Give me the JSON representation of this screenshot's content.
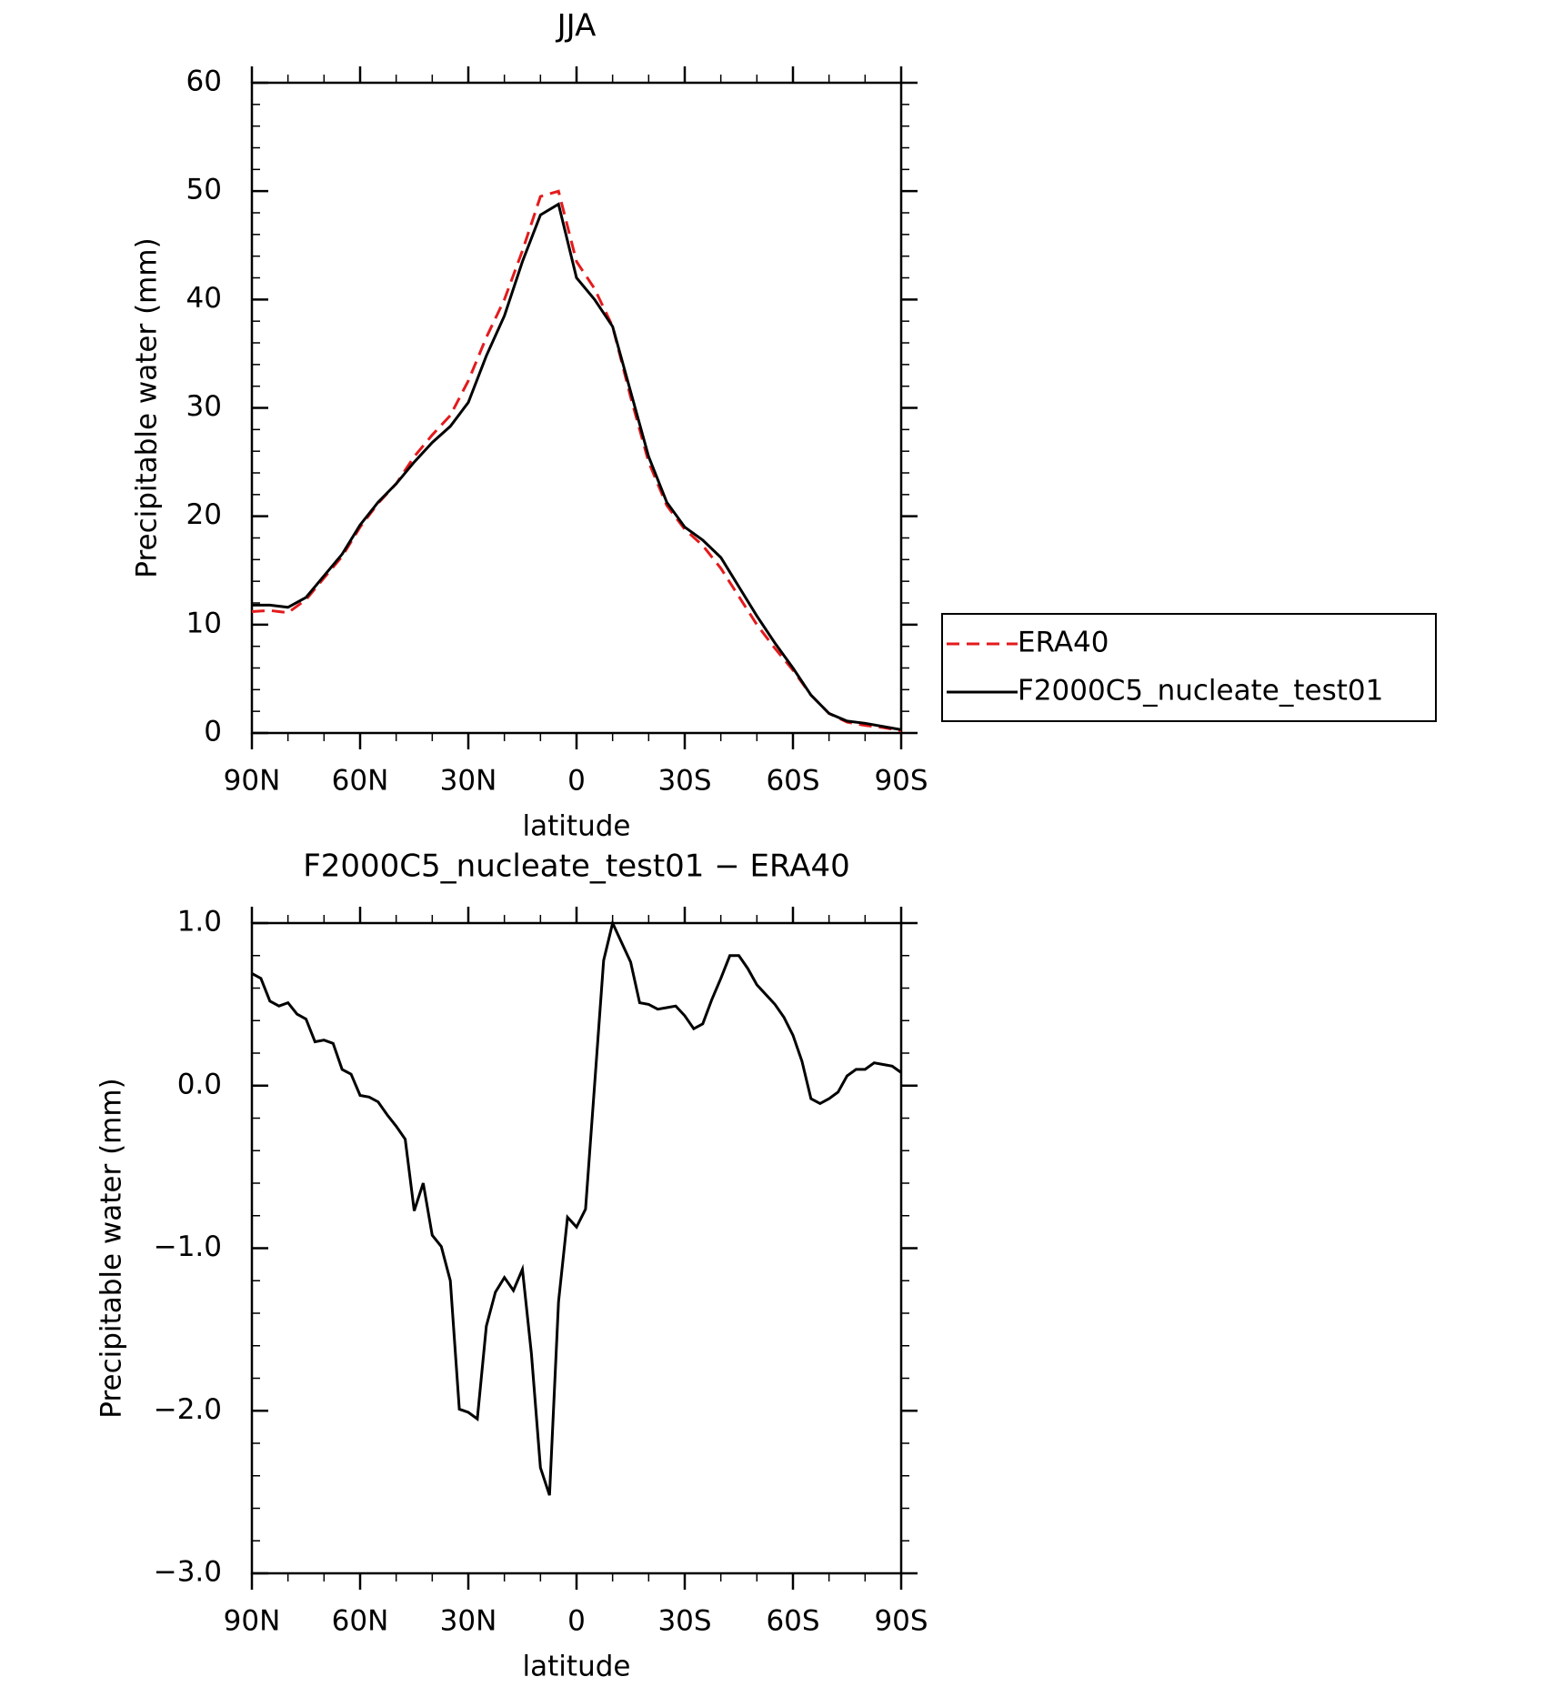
{
  "chart_data": [
    {
      "type": "line",
      "title": "JJA",
      "xlabel": "latitude",
      "ylabel": "Precipitable water (mm)",
      "x": [
        90,
        85,
        80,
        75,
        70,
        65,
        60,
        55,
        50,
        45,
        40,
        35,
        30,
        25,
        20,
        15,
        10,
        5,
        0,
        -5,
        -10,
        -15,
        -20,
        -25,
        -30,
        -35,
        -40,
        -45,
        -50,
        -55,
        -60,
        -65,
        -70,
        -75,
        -80,
        -85,
        -90
      ],
      "series": [
        {
          "name": "ERA40",
          "color": "#e41a1c",
          "line_style": "dashed",
          "values": [
            11.2,
            11.3,
            11.1,
            12.3,
            14.3,
            16.3,
            19.0,
            21.2,
            23.0,
            25.5,
            27.5,
            29.3,
            32.5,
            36.5,
            40.0,
            44.5,
            49.5,
            50.0,
            43.5,
            41.0,
            37.5,
            31.0,
            25.0,
            21.0,
            18.8,
            17.3,
            15.2,
            12.6,
            10.0,
            7.8,
            5.8,
            3.5,
            1.8,
            1.0,
            0.7,
            0.5,
            0.2
          ]
        },
        {
          "name": "F2000C5_nucleate_test01",
          "color": "#000000",
          "line_style": "solid",
          "values": [
            11.8,
            11.8,
            11.6,
            12.5,
            14.5,
            16.5,
            19.2,
            21.3,
            23.0,
            25.0,
            26.8,
            28.3,
            30.5,
            34.8,
            38.5,
            43.5,
            47.8,
            48.8,
            42.0,
            40.0,
            37.5,
            31.5,
            25.5,
            21.3,
            19.0,
            17.8,
            16.2,
            13.5,
            10.8,
            8.3,
            6.0,
            3.5,
            1.8,
            1.1,
            0.9,
            0.6,
            0.3
          ]
        }
      ],
      "xlim": [
        90,
        -90
      ],
      "xticks": [
        {
          "value": 90,
          "label": "90N"
        },
        {
          "value": 60,
          "label": "60N"
        },
        {
          "value": 30,
          "label": "30N"
        },
        0,
        {
          "value": -30,
          "label": "30S"
        },
        {
          "value": -60,
          "label": "60S"
        },
        {
          "value": -90,
          "label": "90S"
        }
      ],
      "ylim": [
        0,
        60
      ],
      "yticks": [
        0,
        10,
        20,
        30,
        40,
        50,
        60
      ],
      "legend": "right"
    },
    {
      "type": "line",
      "title": "F2000C5_nucleate_test01 − ERA40",
      "xlabel": "latitude",
      "ylabel": "Precipitable water (mm)",
      "x": [
        90,
        87.5,
        85,
        82.5,
        80,
        77.5,
        75,
        72.5,
        70,
        67.5,
        65,
        62.5,
        60,
        57.5,
        55,
        52.5,
        50,
        47.5,
        45,
        42.5,
        40,
        37.5,
        35,
        32.5,
        30,
        27.5,
        25,
        22.5,
        20,
        17.5,
        15,
        12.5,
        10,
        7.5,
        5,
        2.5,
        0,
        -2.5,
        -5,
        -7.5,
        -10,
        -12.5,
        -15,
        -17.5,
        -20,
        -22.5,
        -25,
        -27.5,
        -30,
        -32.5,
        -35,
        -37.5,
        -40,
        -42.5,
        -45,
        -47.5,
        -50,
        -52.5,
        -55,
        -57.5,
        -60,
        -62.5,
        -65,
        -67.5,
        -70,
        -72.5,
        -75,
        -77.5,
        -80,
        -82.5,
        -85,
        -87.5,
        -90
      ],
      "series": [
        {
          "color": "#000000",
          "line_style": "solid",
          "values": [
            0.69,
            0.66,
            0.52,
            0.49,
            0.51,
            0.44,
            0.41,
            0.27,
            0.28,
            0.26,
            0.1,
            0.07,
            -0.06,
            -0.07,
            -0.1,
            -0.18,
            -0.25,
            -0.33,
            -0.77,
            -0.6,
            -0.92,
            -0.99,
            -1.2,
            -1.99,
            -2.01,
            -2.05,
            -1.48,
            -1.27,
            -1.18,
            -1.26,
            -1.13,
            -1.65,
            -2.35,
            -2.52,
            -1.33,
            -0.81,
            -0.87,
            -0.76,
            0.0,
            0.77,
            1.0,
            0.88,
            0.76,
            0.51,
            0.5,
            0.47,
            0.48,
            0.49,
            0.43,
            0.35,
            0.38,
            0.53,
            0.66,
            0.8,
            0.8,
            0.72,
            0.62,
            0.56,
            0.5,
            0.42,
            0.31,
            0.15,
            -0.08,
            -0.11,
            -0.08,
            -0.04,
            0.06,
            0.1,
            0.1,
            0.14,
            0.13,
            0.12,
            0.08
          ]
        }
      ],
      "xlim": [
        90,
        -90
      ],
      "xticks": [
        {
          "value": 90,
          "label": "90N"
        },
        {
          "value": 60,
          "label": "60N"
        },
        {
          "value": 30,
          "label": "30N"
        },
        0,
        {
          "value": -30,
          "label": "30S"
        },
        {
          "value": -60,
          "label": "60S"
        },
        {
          "value": -90,
          "label": "90S"
        }
      ],
      "ylim": [
        -3,
        1
      ],
      "yticks": [
        {
          "value": 1,
          "label": "1.0"
        },
        {
          "value": 0,
          "label": "0.0"
        },
        {
          "value": -1,
          "label": "−1.0"
        },
        {
          "value": -2,
          "label": "−2.0"
        },
        {
          "value": -3,
          "label": "−3.0"
        }
      ]
    }
  ]
}
